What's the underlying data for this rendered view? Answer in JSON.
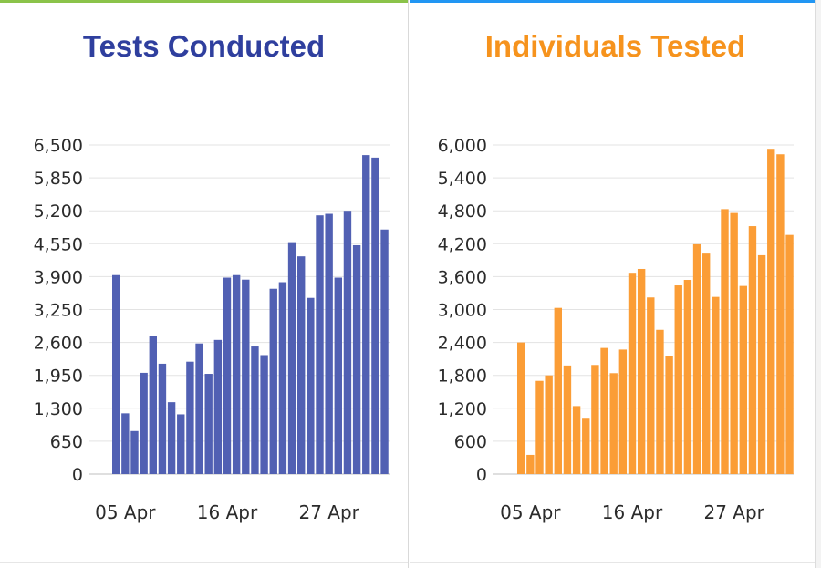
{
  "colors": {
    "tests": "#5160b3",
    "individuals": "#fb9d36",
    "grid": "#e3e3e3",
    "axis": "#bfbfbf"
  },
  "chart_data": [
    {
      "type": "bar",
      "title": "Tests Conducted",
      "title_color": "#2f3f9e",
      "ylim": [
        0,
        6500
      ],
      "yticks": [
        "0",
        "650",
        "1,300",
        "1,950",
        "2,600",
        "3,250",
        "3,900",
        "4,550",
        "5,200",
        "5,850",
        "6,500"
      ],
      "ytick_values": [
        0,
        650,
        1300,
        1950,
        2600,
        3250,
        3900,
        4550,
        5200,
        5850,
        6500
      ],
      "xticks": [
        {
          "label": "05 Apr",
          "index": 1
        },
        {
          "label": "16 Apr",
          "index": 12
        },
        {
          "label": "27 Apr",
          "index": 23
        }
      ],
      "values": [
        3930,
        1200,
        850,
        2000,
        2720,
        2180,
        1420,
        1180,
        2220,
        2580,
        1980,
        2650,
        3880,
        3930,
        3840,
        2520,
        2350,
        3660,
        3790,
        4580,
        4300,
        3480,
        5110,
        5140,
        3880,
        5200,
        4520,
        6300,
        6250,
        4830
      ]
    },
    {
      "type": "bar",
      "title": "Individuals Tested",
      "title_color": "#f6931d",
      "ylim": [
        0,
        6000
      ],
      "yticks": [
        "0",
        "600",
        "1,200",
        "1,800",
        "2,400",
        "3,000",
        "3,600",
        "4,200",
        "4,800",
        "5,400",
        "6,000"
      ],
      "ytick_values": [
        0,
        600,
        1200,
        1800,
        2400,
        3000,
        3600,
        4200,
        4800,
        5400,
        6000
      ],
      "xticks": [
        {
          "label": "05 Apr",
          "index": 1
        },
        {
          "label": "16 Apr",
          "index": 12
        },
        {
          "label": "27 Apr",
          "index": 23
        }
      ],
      "values": [
        2400,
        350,
        1700,
        1800,
        3030,
        1980,
        1240,
        1010,
        1990,
        2300,
        1840,
        2270,
        3670,
        3740,
        3220,
        2630,
        2150,
        3440,
        3540,
        4190,
        4020,
        3230,
        4830,
        4760,
        3430,
        4520,
        3990,
        5930,
        5830,
        4360
      ]
    }
  ]
}
